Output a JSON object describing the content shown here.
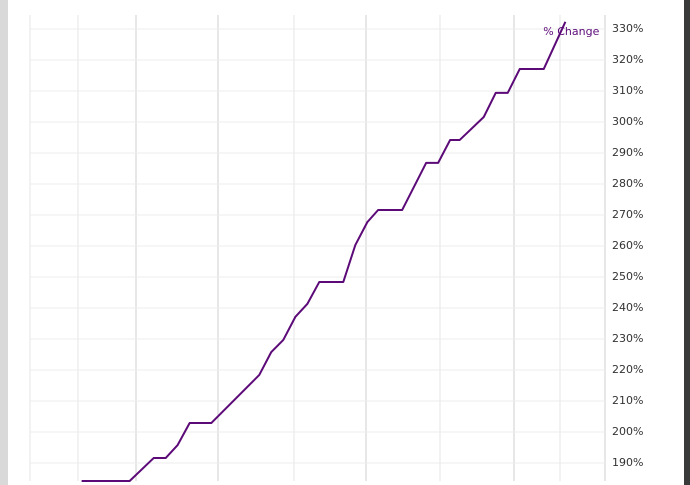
{
  "chart_data": {
    "type": "line",
    "x": [
      0,
      4,
      6,
      7,
      8,
      9,
      10.8,
      14.8,
      15.8,
      16.8,
      17.8,
      18.8,
      19.8,
      21.8,
      22.8,
      23.8,
      24.7,
      26.7,
      28.7,
      29.7,
      30.7,
      31.5,
      33.5,
      34.5,
      35.5,
      36.5,
      38.5,
      40.3
    ],
    "xlim": [
      -4.3,
      43.6
    ],
    "series": [
      {
        "name": "% Change",
        "color": "#5c0a78",
        "values": [
          184.2,
          184.2,
          191.6,
          191.6,
          195.8,
          202.9,
          202.9,
          218.4,
          225.8,
          229.7,
          237.1,
          241.3,
          248.4,
          248.4,
          260.3,
          267.7,
          271.6,
          271.6,
          286.8,
          286.8,
          294.2,
          294.2,
          301.6,
          309.4,
          309.4,
          317.1,
          317.1,
          332.3
        ]
      }
    ],
    "ylim": [
      184.2,
      334.5
    ],
    "yticks": [
      {
        "value": 190,
        "label": "190%"
      },
      {
        "value": 200,
        "label": "200%"
      },
      {
        "value": 210,
        "label": "210%"
      },
      {
        "value": 220,
        "label": "220%"
      },
      {
        "value": 230,
        "label": "230%"
      },
      {
        "value": 240,
        "label": "240%"
      },
      {
        "value": 250,
        "label": "250%"
      },
      {
        "value": 260,
        "label": "260%"
      },
      {
        "value": 270,
        "label": "270%"
      },
      {
        "value": 280,
        "label": "280%"
      },
      {
        "value": 290,
        "label": "290%"
      },
      {
        "value": 300,
        "label": "300%"
      },
      {
        "value": 310,
        "label": "310%"
      },
      {
        "value": 320,
        "label": "320%"
      },
      {
        "value": 330,
        "label": "330%"
      }
    ],
    "grid": true
  }
}
